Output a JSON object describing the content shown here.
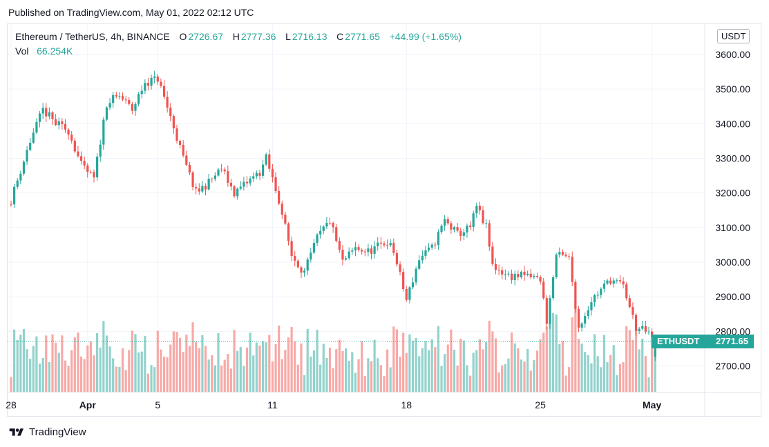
{
  "header": {
    "published": "Published on TradingView.com, May 01, 2022 02:12 UTC"
  },
  "legend": {
    "symbol": "Ethereum / TetherUS, 4h, BINANCE",
    "o_label": "O",
    "o": "2726.67",
    "h_label": "H",
    "h": "2777.36",
    "l_label": "L",
    "l": "2716.13",
    "c_label": "C",
    "c": "2771.65",
    "change": "+44.99 (+1.65%)",
    "vol_label": "Vol",
    "vol": "66.254K"
  },
  "price_scale": {
    "currency": "USDT"
  },
  "last_price_tag": {
    "symbol": "ETHUSDT",
    "price": "2771.65"
  },
  "footer": {
    "brand": "TradingView"
  },
  "colors": {
    "up": "#26a69a",
    "down": "#ef5350",
    "up_vol": "#92d2cc",
    "down_vol": "#f7a9a7",
    "grid": "#f0f3fa"
  },
  "chart_data": {
    "type": "candlestick",
    "symbol": "ETHUSDT",
    "interval": "4h",
    "ylim": [
      2620,
      3640
    ],
    "y_ticks": [
      2700,
      2800,
      2900,
      3000,
      3100,
      3200,
      3300,
      3400,
      3500,
      3600
    ],
    "y_tick_labels": [
      "2700.00",
      "2800.00",
      "2900.00",
      "3000.00",
      "3100.00",
      "3200.00",
      "3300.00",
      "3400.00",
      "3500.00",
      "3600.00"
    ],
    "x_ticks": [
      {
        "label": "28",
        "index": 0
      },
      {
        "label": "Apr",
        "index": 24
      },
      {
        "label": "5",
        "index": 46
      },
      {
        "label": "11",
        "index": 82
      },
      {
        "label": "18",
        "index": 124
      },
      {
        "label": "25",
        "index": 166
      },
      {
        "label": "May",
        "index": 201
      }
    ],
    "last_price": 2771.65,
    "key_points": [
      [
        0,
        3180
      ],
      [
        6,
        3350
      ],
      [
        10,
        3440
      ],
      [
        14,
        3400
      ],
      [
        18,
        3380
      ],
      [
        22,
        3280
      ],
      [
        26,
        3240
      ],
      [
        30,
        3460
      ],
      [
        34,
        3480
      ],
      [
        38,
        3440
      ],
      [
        42,
        3520
      ],
      [
        46,
        3530
      ],
      [
        50,
        3420
      ],
      [
        54,
        3300
      ],
      [
        58,
        3200
      ],
      [
        62,
        3230
      ],
      [
        66,
        3270
      ],
      [
        70,
        3200
      ],
      [
        74,
        3230
      ],
      [
        78,
        3260
      ],
      [
        80,
        3300
      ],
      [
        84,
        3180
      ],
      [
        88,
        3020
      ],
      [
        92,
        2970
      ],
      [
        96,
        3070
      ],
      [
        100,
        3120
      ],
      [
        104,
        3000
      ],
      [
        108,
        3040
      ],
      [
        112,
        3030
      ],
      [
        118,
        3060
      ],
      [
        120,
        3030
      ],
      [
        124,
        2890
      ],
      [
        128,
        3010
      ],
      [
        132,
        3040
      ],
      [
        136,
        3120
      ],
      [
        140,
        3080
      ],
      [
        144,
        3100
      ],
      [
        146,
        3160
      ],
      [
        149,
        3100
      ],
      [
        151,
        2990
      ],
      [
        156,
        2960
      ],
      [
        162,
        2960
      ],
      [
        166,
        2950
      ],
      [
        168,
        2830
      ],
      [
        171,
        3020
      ],
      [
        175,
        3010
      ],
      [
        178,
        2810
      ],
      [
        182,
        2890
      ],
      [
        188,
        2950
      ],
      [
        192,
        2930
      ],
      [
        196,
        2810
      ],
      [
        199,
        2800
      ],
      [
        202,
        2772
      ]
    ],
    "volume_ylim": [
      0,
      90000
    ],
    "series": [
      {
        "name": "Vol",
        "last_value": "66.254K"
      }
    ]
  }
}
